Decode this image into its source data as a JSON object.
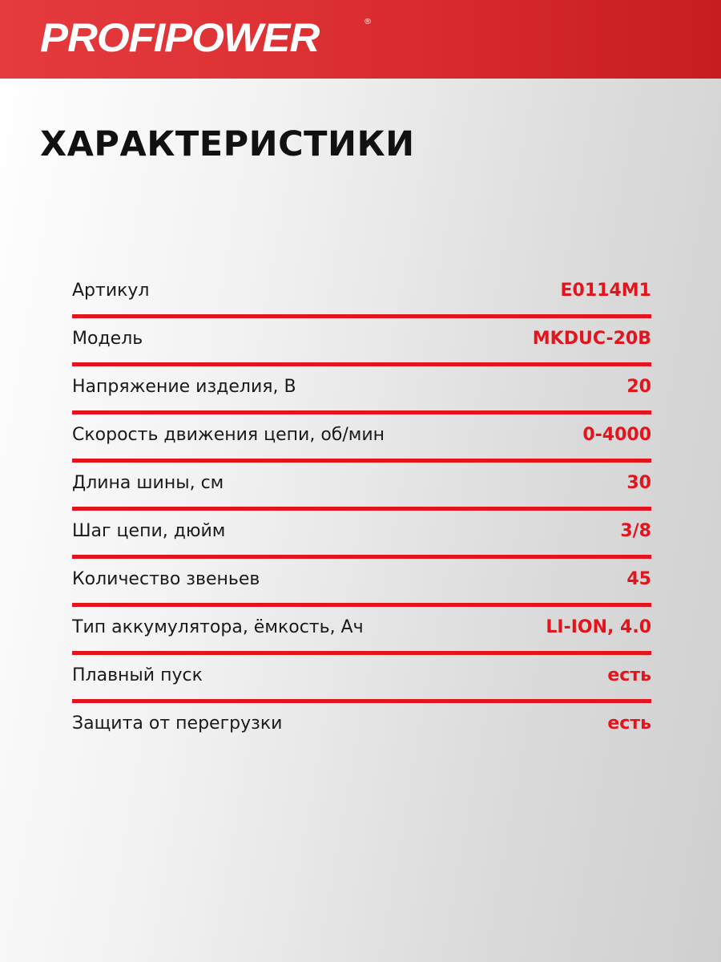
{
  "brand": {
    "name": "PROFIPOWER",
    "registered": "®",
    "color": "#e3141b"
  },
  "title": "ХАРАКТЕРИСТИКИ",
  "specs": [
    {
      "label": "Артикул",
      "value": "E0114M1"
    },
    {
      "label": "Модель",
      "value": "MKDUC-20B"
    },
    {
      "label": "Напряжение изделия, В",
      "value": "20"
    },
    {
      "label": "Скорость движения цепи, об/мин",
      "value": "0-4000"
    },
    {
      "label": "Длина шины, см",
      "value": "30"
    },
    {
      "label": "Шаг цепи, дюйм",
      "value": "3/8"
    },
    {
      "label": "Количество звеньев",
      "value": "45"
    },
    {
      "label": "Тип аккумулятора, ёмкость, Ач",
      "value": "LI-ION, 4.0"
    },
    {
      "label": "Плавный пуск",
      "value": "есть"
    },
    {
      "label": "Защита от перегрузки",
      "value": "есть"
    }
  ]
}
